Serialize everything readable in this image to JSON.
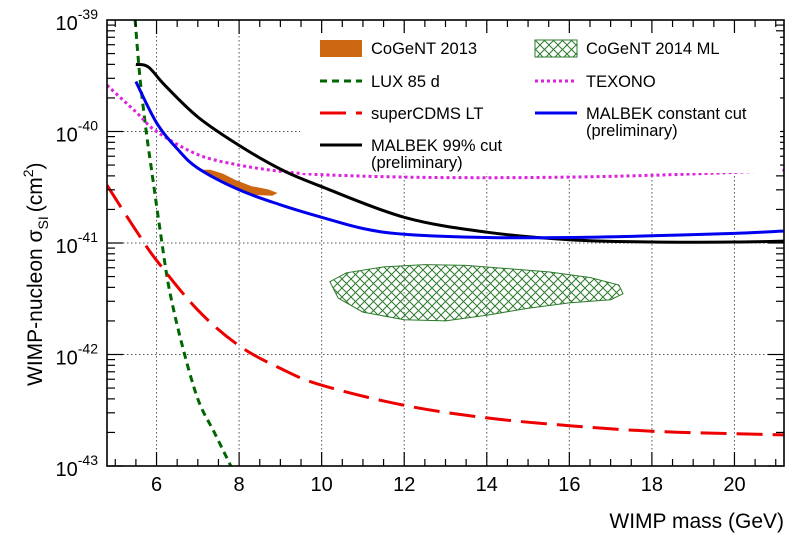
{
  "chart_data": {
    "type": "line",
    "xlabel": "WIMP mass (GeV)",
    "ylabel": "WIMP-nucleon σ",
    "ylabel_sub": "SI",
    "ylabel_unit_prefix": "(cm",
    "ylabel_unit_sup": "2",
    "ylabel_unit_suffix": ")",
    "xlim": [
      4.8,
      21.2
    ],
    "ylim": [
      1e-43,
      1e-39
    ],
    "yscale": "log",
    "grid": true,
    "legend_position": "top-right",
    "x_ticks": [
      6,
      8,
      10,
      12,
      14,
      16,
      18,
      20
    ],
    "x_tick_labels": [
      "6",
      "8",
      "10",
      "12",
      "14",
      "16",
      "18",
      "20"
    ],
    "y_ticks": [
      {
        "value": 1e-39,
        "base": "10",
        "exp": "-39"
      },
      {
        "value": 1e-40,
        "base": "10",
        "exp": "-40"
      },
      {
        "value": 1e-41,
        "base": "10",
        "exp": "-41"
      },
      {
        "value": 1e-42,
        "base": "10",
        "exp": "-42"
      },
      {
        "value": 1e-43,
        "base": "10",
        "exp": "-43"
      }
    ],
    "series": [
      {
        "name": "LUX 85 d",
        "style": "short-dash",
        "color": "#006600",
        "x": [
          5.48,
          5.6,
          5.75,
          5.9,
          6.1,
          6.3,
          6.6,
          7.0,
          7.4,
          7.8
        ],
        "y": [
          1e-39,
          3e-40,
          1e-40,
          4e-41,
          1.2e-41,
          4e-42,
          1.3e-42,
          4e-43,
          2e-43,
          1e-43
        ]
      },
      {
        "name": "TEXONO",
        "style": "dot",
        "color": "#dd22dd",
        "x": [
          4.8,
          5.5,
          6.0,
          7.0,
          8.0,
          9.0,
          10.0,
          12.0,
          14.0,
          16.0,
          18.0,
          20.0,
          21.2
        ],
        "y": [
          2.6e-40,
          1.5e-40,
          1e-40,
          6.2e-41,
          5e-41,
          4.4e-41,
          4.1e-41,
          3.9e-41,
          3.85e-41,
          3.9e-41,
          4.05e-41,
          4.3e-41,
          4.5e-41
        ]
      },
      {
        "name": "superCDMS LT",
        "style": "long-dash",
        "color": "#ee0000",
        "x": [
          4.8,
          5.5,
          6.0,
          7.0,
          8.0,
          9.0,
          10.0,
          12.0,
          14.0,
          16.0,
          18.0,
          20.0,
          21.2
        ],
        "y": [
          3.3e-41,
          1.3e-41,
          7e-42,
          2.5e-42,
          1.2e-42,
          7.5e-43,
          5.3e-43,
          3.5e-43,
          2.7e-43,
          2.3e-43,
          2.05e-43,
          1.95e-43,
          1.9e-43
        ]
      },
      {
        "name": "MALBEK 99% cut",
        "name_line2": "(preliminary)",
        "style": "solid",
        "color": "#000000",
        "x": [
          5.5,
          5.8,
          6.2,
          7.0,
          8.0,
          9.0,
          10.0,
          12.0,
          14.0,
          16.0,
          18.0,
          20.0,
          21.2
        ],
        "y": [
          4e-40,
          3.8e-40,
          2.6e-40,
          1.35e-40,
          7.5e-41,
          4.6e-41,
          3.2e-41,
          1.7e-41,
          1.25e-41,
          1.07e-41,
          1.02e-41,
          1.02e-41,
          1.04e-41
        ]
      },
      {
        "name": "MALBEK constant cut",
        "name_line2": "(preliminary)",
        "style": "solid",
        "color": "#0000ee",
        "x": [
          5.5,
          6.0,
          6.5,
          7.0,
          8.0,
          9.0,
          10.0,
          11.0,
          12.0,
          14.0,
          16.0,
          18.0,
          20.0,
          21.2
        ],
        "y": [
          2.8e-40,
          1.2e-40,
          7e-41,
          4.7e-41,
          3e-41,
          2.2e-41,
          1.7e-41,
          1.35e-41,
          1.2e-41,
          1.12e-41,
          1.12e-41,
          1.16e-41,
          1.22e-41,
          1.28e-41
        ]
      }
    ],
    "regions": [
      {
        "name": "CoGeNT 2013",
        "style": "filled",
        "color": "#cc6611",
        "x": [
          7.1,
          7.3,
          7.6,
          7.9,
          8.3,
          8.7,
          8.9,
          8.8,
          8.4,
          8.0,
          7.7,
          7.4,
          7.1
        ],
        "y": [
          4.5e-41,
          4.5e-41,
          4.15e-41,
          3.65e-41,
          3.2e-41,
          3e-41,
          2.8e-41,
          2.68e-41,
          2.72e-41,
          3e-41,
          3.45e-41,
          4e-41,
          4.5e-41
        ]
      },
      {
        "name": "CoGeNT 2014 ML",
        "style": "hatched",
        "color": "#2c7a2c",
        "x": [
          10.2,
          10.6,
          11.5,
          12.5,
          13.5,
          14.5,
          15.5,
          16.5,
          17.2,
          17.3,
          17.0,
          16.0,
          15.0,
          14.0,
          13.0,
          12.0,
          11.0,
          10.4,
          10.2
        ],
        "y": [
          4.5e-42,
          5.4e-42,
          6.1e-42,
          6.4e-42,
          6.3e-42,
          5.9e-42,
          5.5e-42,
          4.9e-42,
          4.2e-42,
          3.5e-42,
          3.1e-42,
          2.9e-42,
          2.6e-42,
          2.25e-42,
          2e-42,
          2.05e-42,
          2.4e-42,
          3.2e-42,
          4.5e-42
        ]
      }
    ],
    "legend": [
      {
        "label": "CoGeNT 2013",
        "kind": "patch-filled",
        "color": "#cc6611"
      },
      {
        "label": "CoGeNT 2014 ML",
        "kind": "patch-hatched",
        "color": "#2c7a2c"
      },
      {
        "label": "LUX 85 d",
        "kind": "short-dash",
        "color": "#006600"
      },
      {
        "label": "TEXONO",
        "kind": "dot",
        "color": "#dd22dd"
      },
      {
        "label": "superCDMS LT",
        "kind": "long-dash",
        "color": "#ee0000"
      },
      {
        "label": "MALBEK constant cut",
        "label2": "(preliminary)",
        "kind": "solid",
        "color": "#0000ee"
      },
      {
        "label": "MALBEK 99% cut",
        "label2": "(preliminary)",
        "kind": "solid",
        "color": "#000000"
      }
    ]
  }
}
